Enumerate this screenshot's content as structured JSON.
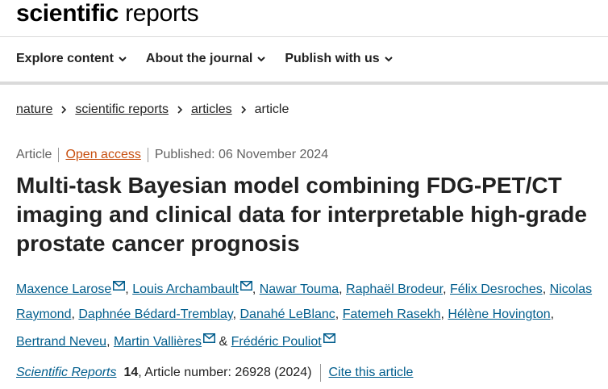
{
  "logo": {
    "bold": "scientific",
    "light": "reports"
  },
  "nav": {
    "items": [
      {
        "label": "Explore content"
      },
      {
        "label": "About the journal"
      },
      {
        "label": "Publish with us"
      }
    ]
  },
  "breadcrumb": [
    "nature",
    "scientific reports",
    "articles",
    "article"
  ],
  "meta": {
    "type": "Article",
    "access": "Open access",
    "published": "Published: 06 November 2024"
  },
  "article": {
    "title": "Multi-task Bayesian model combining FDG-PET/CT imaging and clinical data for interpretable high-grade prostate cancer prognosis"
  },
  "authors": [
    {
      "name": "Maxence Larose",
      "email": true
    },
    {
      "name": "Louis Archambault",
      "email": true
    },
    {
      "name": "Nawar Touma",
      "email": false
    },
    {
      "name": "Raphaël Brodeur",
      "email": false
    },
    {
      "name": "Félix Desroches",
      "email": false
    },
    {
      "name": "Nicolas Raymond",
      "email": false
    },
    {
      "name": "Daphnée Bédard-Tremblay",
      "email": false
    },
    {
      "name": "Danahé LeBlanc",
      "email": false
    },
    {
      "name": "Fatemeh Rasekh",
      "email": false
    },
    {
      "name": "Hélène Hovington",
      "email": false
    },
    {
      "name": "Bertrand Neveu",
      "email": false
    },
    {
      "name": "Martin Vallières",
      "email": true
    },
    {
      "name": "Frédéric Pouliot",
      "email": true
    }
  ],
  "authors_conjunction": "&",
  "citation": {
    "journal": "Scientific Reports",
    "volume": "14",
    "article_number": ", Article number: 26928 (2024)",
    "cite_label": "Cite this article"
  },
  "colors": {
    "link": "#025e8d",
    "open_access": "#c74e0e",
    "text": "#222222"
  },
  "icons": {
    "nav_chevron": "chevron-down-icon",
    "breadcrumb_sep": "chevron-right-icon",
    "author_email": "mail-icon"
  }
}
